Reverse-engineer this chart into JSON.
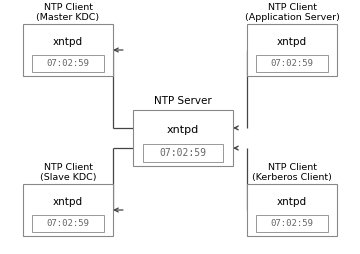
{
  "bg_color": "#ffffff",
  "edge_color": "#888888",
  "arrow_color": "#444444",
  "time_text": "07:02:59",
  "time_color": "#666666",
  "daemon_text": "xntpd",
  "center_label": "NTP Server",
  "tl_label": "NTP Client\n(Master KDC)",
  "tr_label": "NTP Client\n(Application Server)",
  "bl_label": "NTP Client\n(Slave KDC)",
  "br_label": "NTP Client\n(Kerberos Client)",
  "fig_w": 3.6,
  "fig_h": 2.54,
  "dpi": 100
}
